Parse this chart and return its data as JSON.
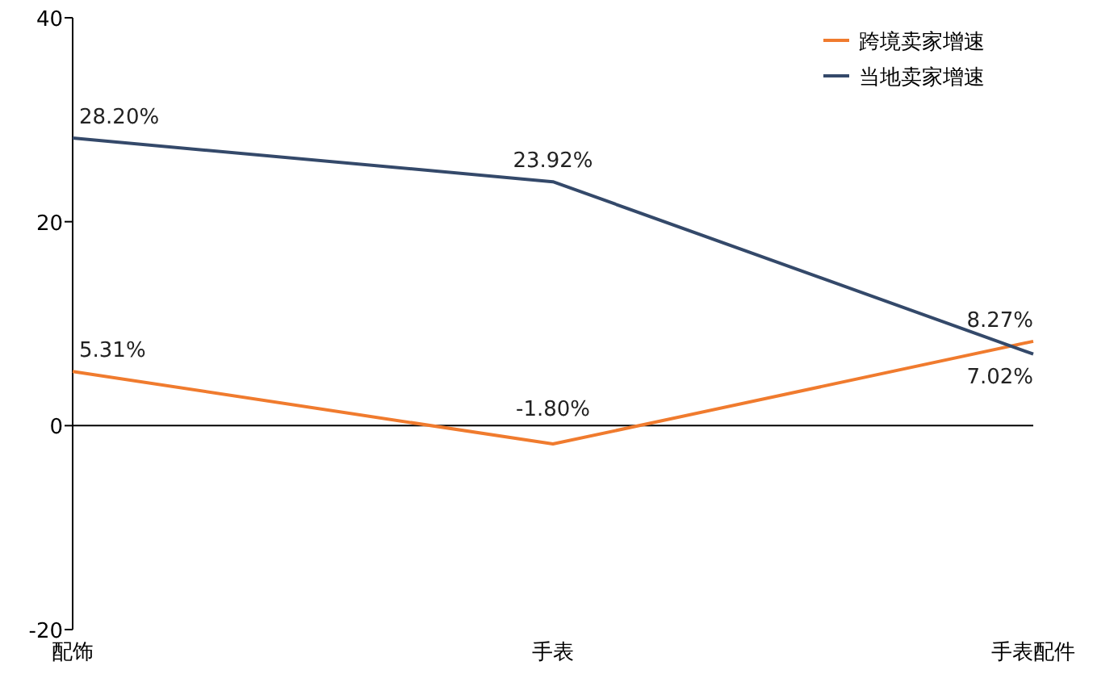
{
  "chart_data": {
    "type": "line",
    "categories": [
      "配饰",
      "手表",
      "手表配件"
    ],
    "series": [
      {
        "name": "跨境卖家增速",
        "color": "#f07b2e",
        "values": [
          5.31,
          -1.8,
          8.27
        ],
        "value_labels": [
          "5.31%",
          "-1.80%",
          "8.27%"
        ]
      },
      {
        "name": "当地卖家增速",
        "color": "#34496a",
        "values": [
          28.2,
          23.92,
          7.02
        ],
        "value_labels": [
          "28.20%",
          "23.92%",
          "7.02%"
        ]
      }
    ],
    "ylim": [
      -20,
      40
    ],
    "yticks": [
      -20,
      0,
      20,
      40
    ],
    "legend": "top right",
    "marker": "none",
    "line_style": "solid"
  }
}
